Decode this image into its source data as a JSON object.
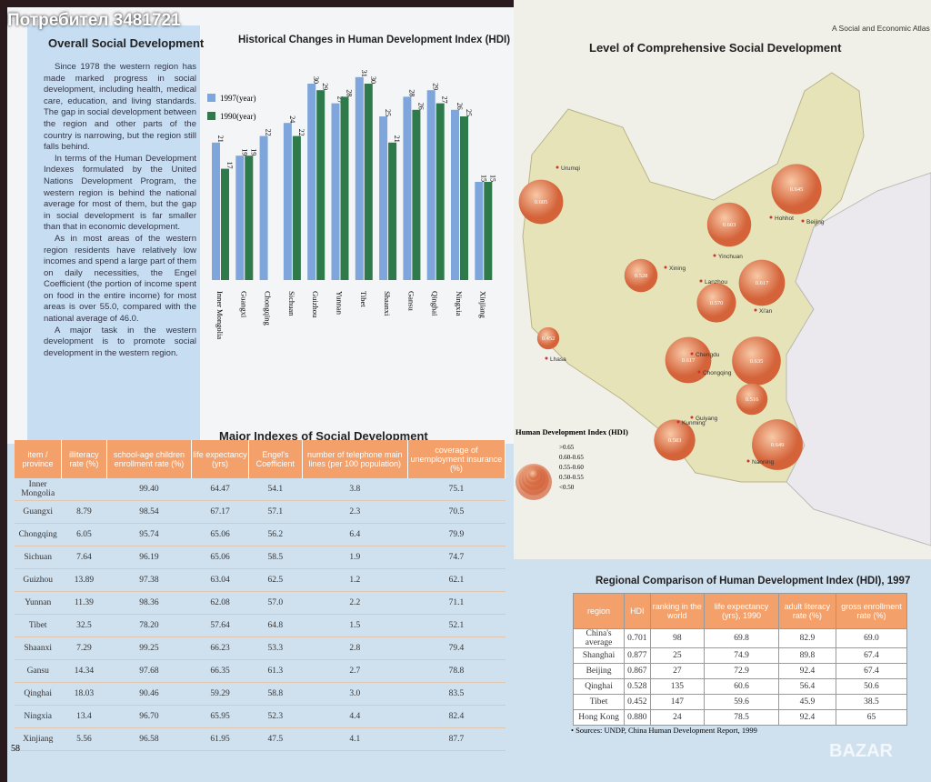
{
  "watermark": "Потребител 3481721",
  "page_number": "58",
  "brand": "BAZAR",
  "left_page": {
    "title": "Overall Social Development",
    "paragraphs": [
      "Since 1978 the western region has made marked progress in social development, including health, medical care, education, and living standards. The gap in social development between the region and other parts of the country is narrowing, but the region still falls behind.",
      "In terms of the Human Development Indexes formulated by the United Nations Development Program, the western region is behind the national average for most of them, but the gap in social development is far smaller than that in economic development.",
      "As in most areas of the western region residents have relatively low incomes and spend a large part of them on daily necessities, the Engel Coefficient (the portion of income spent on food in the entire income) for most areas is over 55.0, compared with the national average of 46.0.",
      "A major task in the western development is to promote social development in the western region."
    ],
    "bar_chart": {
      "type": "bar",
      "title": "Historical Changes in Human Development Index (HDI)",
      "categories": [
        "Inner Mongolia",
        "Guangxi",
        "Chongqing",
        "Sichuan",
        "Guizhou",
        "Yunnan",
        "Tibet",
        "Shaanxi",
        "Gansu",
        "Qinghai",
        "Ningxia",
        "Xinjiang"
      ],
      "series": [
        {
          "name": "1997(year)",
          "color": "#7fa6dc",
          "values": [
            21,
            19,
            22,
            24,
            30,
            27,
            31,
            25,
            28,
            29,
            26,
            15
          ]
        },
        {
          "name": "1990(year)",
          "color": "#2f7a4a",
          "values": [
            17,
            19,
            null,
            22,
            29,
            28,
            30,
            21,
            26,
            27,
            25,
            15
          ]
        }
      ]
    },
    "table": {
      "title": "Major Indexes of Social Development",
      "header": [
        "item / province",
        "illiteracy rate (%)",
        "school-age children enrollment rate (%)",
        "life expectancy (yrs)",
        "Engel's Coefficient",
        "number of telephone main lines (per 100 population)",
        "coverage of unemployment insurance (%)"
      ],
      "rows": [
        [
          "Inner Mongolia",
          null,
          "99.40",
          "64.47",
          "54.1",
          "3.8",
          "75.1"
        ],
        [
          "Guangxi",
          "8.79",
          "98.54",
          "67.17",
          "57.1",
          "2.3",
          "70.5"
        ],
        [
          "Chongqing",
          "6.05",
          "95.74",
          "65.06",
          "56.2",
          "6.4",
          "79.9"
        ],
        [
          "Sichuan",
          "7.64",
          "96.19",
          "65.06",
          "58.5",
          "1.9",
          "74.7"
        ],
        [
          "Guizhou",
          "13.89",
          "97.38",
          "63.04",
          "62.5",
          "1.2",
          "62.1"
        ],
        [
          "Yunnan",
          "11.39",
          "98.36",
          "62.08",
          "57.0",
          "2.2",
          "71.1"
        ],
        [
          "Tibet",
          "32.5",
          "78.20",
          "57.64",
          "64.8",
          "1.5",
          "52.1"
        ],
        [
          "Shaanxi",
          "7.29",
          "99.25",
          "66.23",
          "53.3",
          "2.8",
          "79.4"
        ],
        [
          "Gansu",
          "14.34",
          "97.68",
          "66.35",
          "61.3",
          "2.7",
          "78.8"
        ],
        [
          "Qinghai",
          "18.03",
          "90.46",
          "59.29",
          "58.8",
          "3.0",
          "83.5"
        ],
        [
          "Ningxia",
          "13.4",
          "96.70",
          "65.95",
          "52.3",
          "4.4",
          "82.4"
        ],
        [
          "Xinjiang",
          "5.56",
          "96.58",
          "61.95",
          "47.5",
          "4.1",
          "87.7"
        ]
      ]
    }
  },
  "right_page": {
    "header": "A Social and Economic Atlas of Western C",
    "title": "Level of Comprehensive Social Development",
    "map": {
      "values": [
        0.605,
        0.645,
        0.603,
        0.528,
        0.617,
        0.57,
        0.452,
        0.617,
        0.635,
        0.516,
        0.583,
        0.649
      ],
      "value_labels": [
        "0.605",
        "0.645",
        "0.603",
        "0.528",
        "0.617",
        "0.570",
        "0.452",
        "0.617",
        "0.635",
        "0.516",
        "0.583",
        "0.649"
      ],
      "cities": [
        "Urumqi",
        "Hohhot",
        "Beijing",
        "Yinchuan",
        "Xining",
        "Lanzhou",
        "Xi'an",
        "Lhasa",
        "Chengdu",
        "Chongqing",
        "Guiyang",
        "Kunming",
        "Nanning"
      ],
      "legend_title": "Human Development Index (HDI)",
      "legend": [
        ">0.65",
        "0.60-0.65",
        "0.55-0.60",
        "0.50-0.55",
        "<0.50"
      ]
    },
    "table": {
      "title": "Regional Comparison of Human Development Index (HDI), 1997",
      "header": [
        "region",
        "HDI",
        "ranking in the world",
        "life expectancy (yrs), 1990",
        "adult literacy rate (%)",
        "gross enrollment rate (%)"
      ],
      "rows": [
        [
          "China's average",
          "0.701",
          "98",
          "69.8",
          "82.9",
          "69.0"
        ],
        [
          "Shanghai",
          "0.877",
          "25",
          "74.9",
          "89.8",
          "67.4"
        ],
        [
          "Beijing",
          "0.867",
          "27",
          "72.9",
          "92.4",
          "67.4"
        ],
        [
          "Qinghai",
          "0.528",
          "135",
          "60.6",
          "56.4",
          "50.6"
        ],
        [
          "Tibet",
          "0.452",
          "147",
          "59.6",
          "45.9",
          "38.5"
        ],
        [
          "Hong Kong",
          "0.880",
          "24",
          "78.5",
          "92.4",
          "65"
        ]
      ]
    },
    "source": "• Sources: UNDP, China Human Development Report, 1999"
  }
}
